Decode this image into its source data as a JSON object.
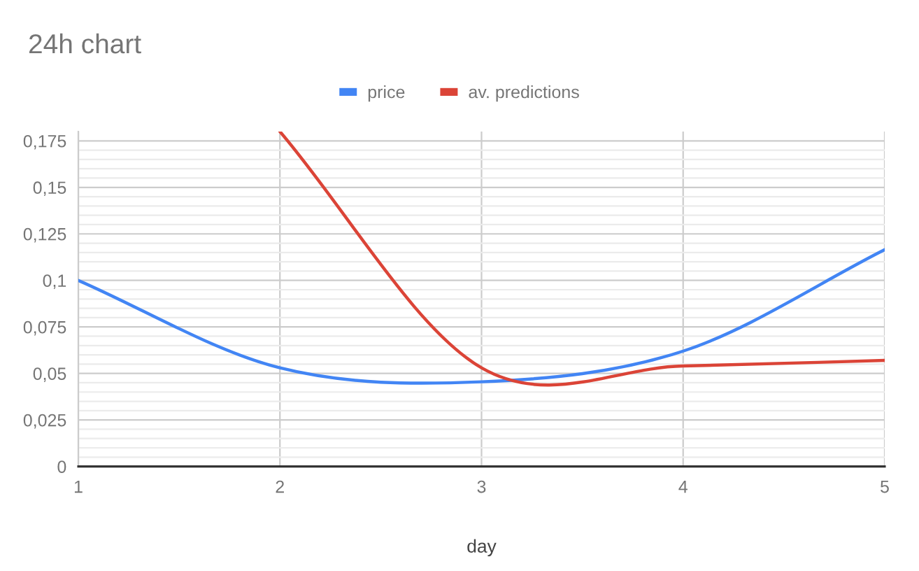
{
  "chart_data": {
    "type": "line",
    "title": "24h chart",
    "xlabel": "day",
    "x": [
      1,
      2,
      3,
      4,
      5
    ],
    "series": [
      {
        "name": "price",
        "color": "#4285f4",
        "values": [
          0.1,
          0.053,
          0.0455,
          0.062,
          0.1165
        ]
      },
      {
        "name": "av. predictions",
        "color": "#db4437",
        "values": [
          null,
          0.18,
          0.053,
          0.054,
          0.057
        ]
      }
    ],
    "xlim": [
      1,
      5
    ],
    "xticks": [
      1,
      2,
      3,
      4,
      5
    ],
    "ylim": [
      0,
      0.18
    ],
    "yticks": [
      0,
      {
        "value": 0.005,
        "label": null
      },
      {
        "value": 0.01,
        "label": null
      },
      {
        "value": 0.015,
        "label": null
      },
      {
        "value": 0.02,
        "label": null
      },
      {
        "value": 0.025,
        "label": "0,025"
      },
      {
        "value": 0.03,
        "label": null
      },
      {
        "value": 0.035,
        "label": null
      },
      {
        "value": 0.04,
        "label": null
      },
      {
        "value": 0.045,
        "label": null
      },
      {
        "value": 0.05,
        "label": "0,05"
      },
      {
        "value": 0.055,
        "label": null
      },
      {
        "value": 0.06,
        "label": null
      },
      {
        "value": 0.065,
        "label": null
      },
      {
        "value": 0.07,
        "label": null
      },
      {
        "value": 0.075,
        "label": "0,075"
      },
      {
        "value": 0.08,
        "label": null
      },
      {
        "value": 0.085,
        "label": null
      },
      {
        "value": 0.09,
        "label": null
      },
      {
        "value": 0.095,
        "label": null
      },
      {
        "value": 0.1,
        "label": "0,1"
      },
      {
        "value": 0.105,
        "label": null
      },
      {
        "value": 0.11,
        "label": null
      },
      {
        "value": 0.115,
        "label": null
      },
      {
        "value": 0.12,
        "label": null
      },
      {
        "value": 0.125,
        "label": "0,125"
      },
      {
        "value": 0.13,
        "label": null
      },
      {
        "value": 0.135,
        "label": null
      },
      {
        "value": 0.14,
        "label": null
      },
      {
        "value": 0.145,
        "label": null
      },
      {
        "value": 0.15,
        "label": "0,15"
      },
      {
        "value": 0.155,
        "label": null
      },
      {
        "value": 0.16,
        "label": null
      },
      {
        "value": 0.165,
        "label": null
      },
      {
        "value": 0.17,
        "label": null
      },
      {
        "value": 0.175,
        "label": "0,175"
      }
    ],
    "grid": true,
    "legend": "top"
  }
}
